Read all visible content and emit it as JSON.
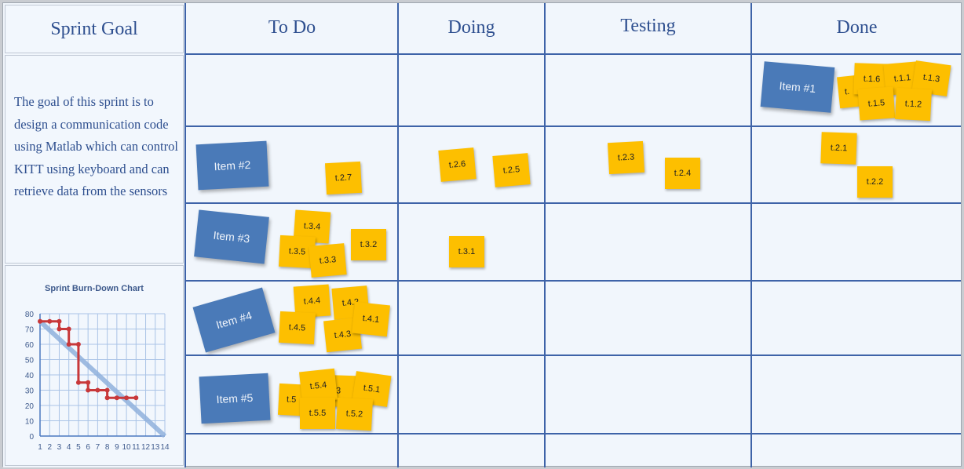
{
  "sidebar": {
    "goal_title": "Sprint Goal",
    "goal_text": "The goal of this sprint is to design a communication code using Matlab which can control KITT using keyboard  and can retrieve data from the sensors"
  },
  "columns": [
    "To Do",
    "Doing",
    "Testing",
    "Done"
  ],
  "items": [
    "Item #1",
    "Item #2",
    "Item #3",
    "Item #4",
    "Item #5"
  ],
  "tasks": {
    "row1_done": [
      "t.",
      "t.1.6",
      "t.1.1",
      "t.1.3",
      "t.1.5",
      "t.1.2"
    ],
    "row2_todo": [
      "t.2.7"
    ],
    "row2_doing": [
      "t.2.6",
      "t.2.5"
    ],
    "row2_testing": [
      "t.2.3",
      "t.2.4"
    ],
    "row2_done": [
      "t.2.1",
      "t.2.2"
    ],
    "row3_todo": [
      "t.3.4",
      "t.3.5",
      "t.3.3",
      "t.3.2"
    ],
    "row3_doing": [
      "t.3.1"
    ],
    "row4_todo": [
      "t.4.4",
      "t.4.2",
      "t.4.5",
      "t.4.3",
      "t.4.1"
    ],
    "row5_todo": [
      "t.5",
      "3",
      "t.5.4",
      "t.5.1",
      "t.5.5",
      "t.5.2"
    ]
  },
  "colors": {
    "item": "#4a7ab8",
    "task": "#fdbf00",
    "grid": "#3e63a8",
    "actual": "#c8383a",
    "ideal": "#8fb0dc"
  },
  "chart_data": {
    "type": "line",
    "title": "Sprint Burn-Down Chart",
    "xlabel": "",
    "ylabel": "",
    "xlim": [
      1,
      14
    ],
    "ylim": [
      0,
      80
    ],
    "grid": true,
    "x_ticks": [
      "1",
      "2",
      "3",
      "4",
      "5",
      "6",
      "7",
      "8",
      "9",
      "10",
      "11",
      "12",
      "13",
      "14"
    ],
    "y_ticks": [
      "0",
      "10",
      "20",
      "30",
      "40",
      "50",
      "60",
      "70",
      "80"
    ],
    "series": [
      {
        "points": [
          [
            1,
            75
          ],
          [
            14,
            0
          ]
        ]
      },
      {
        "points": [
          [
            1,
            75
          ],
          [
            2,
            75
          ],
          [
            3,
            75
          ],
          [
            3,
            70
          ],
          [
            4,
            70
          ],
          [
            4,
            60
          ],
          [
            5,
            60
          ],
          [
            5,
            35
          ],
          [
            6,
            35
          ],
          [
            6,
            30
          ],
          [
            7,
            30
          ],
          [
            8,
            30
          ],
          [
            8,
            25
          ],
          [
            9,
            25
          ],
          [
            10,
            25
          ],
          [
            11,
            25
          ]
        ]
      }
    ]
  }
}
